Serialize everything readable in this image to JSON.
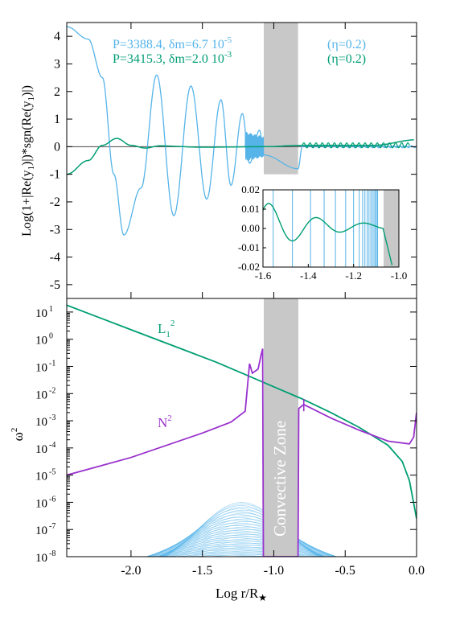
{
  "chart_data": [
    {
      "type": "line",
      "panel": "top",
      "ylabel": "Log(1+|Re(y1)|)*sgn(Re(y1))",
      "ylabel_parts": [
        "Log(1+|Re(y",
        "1",
        ")|)*sgn(Re(y",
        "1",
        ")|)"
      ],
      "xlim": [
        -2.45,
        0.0
      ],
      "ylim": [
        -5.5,
        4.5
      ],
      "yticks": [
        "4",
        "3",
        "2",
        "1",
        "0",
        "-1",
        "-2",
        "-3",
        "-4",
        "-5"
      ],
      "yticks_values": [
        4,
        3,
        2,
        1,
        0,
        -1,
        -2,
        -3,
        -4,
        -5
      ],
      "convective_zone": [
        -1.07,
        -0.83
      ],
      "legend": [
        {
          "text_main": "P=3388.4, δm=6.7 10",
          "text_sup": "-5",
          "eta": "(η=0.2)",
          "color": "#56b4e9"
        },
        {
          "text_main": "P=3415.3, δm=2.0 10",
          "text_sup": "-3",
          "eta": "(η=0.2)",
          "color": "#009e73"
        }
      ],
      "series": [
        {
          "name": "P=3388.4",
          "color": "#56b4e9",
          "description_points": [
            [
              -2.45,
              4.35
            ],
            [
              -2.3,
              3.9
            ],
            [
              -2.2,
              2.5
            ],
            [
              -2.12,
              -1.0
            ],
            [
              -2.05,
              -3.2
            ],
            [
              -1.93,
              -1.5
            ],
            [
              -1.82,
              2.6
            ],
            [
              -1.7,
              -2.5
            ],
            [
              -1.58,
              2.2
            ],
            [
              -1.47,
              -1.9
            ],
            [
              -1.37,
              1.7
            ],
            [
              -1.3,
              -1.4
            ],
            [
              -1.22,
              1.2
            ],
            [
              -1.17,
              -0.6
            ],
            [
              -1.1,
              0.6
            ],
            [
              -1.07,
              -0.3
            ],
            [
              -0.83,
              -0.8
            ],
            [
              -0.8,
              0.02
            ],
            [
              0.0,
              0.0
            ]
          ]
        },
        {
          "name": "P=3415.3",
          "color": "#009e73",
          "description_points": [
            [
              -2.45,
              -1.0
            ],
            [
              -2.3,
              -0.5
            ],
            [
              -2.2,
              0.05
            ],
            [
              -2.1,
              0.3
            ],
            [
              -2.0,
              0.05
            ],
            [
              -1.9,
              -0.05
            ],
            [
              -1.8,
              0.03
            ],
            [
              -1.5,
              -0.02
            ],
            [
              -1.07,
              0.0
            ],
            [
              -0.8,
              0.05
            ],
            [
              -0.3,
              0.05
            ],
            [
              0.0,
              0.25
            ]
          ]
        }
      ]
    },
    {
      "type": "line",
      "panel": "inset",
      "xlim": [
        -1.6,
        -1.0
      ],
      "ylim": [
        -0.02,
        0.02
      ],
      "xticks": [
        "-1.6",
        "-1.4",
        "-1.2",
        "-1.0"
      ],
      "xticks_values": [
        -1.6,
        -1.4,
        -1.2,
        -1.0
      ],
      "yticks": [
        "0.02",
        "0.01",
        "0.00",
        "-0.01",
        "-0.02"
      ],
      "yticks_values": [
        0.02,
        0.01,
        0.0,
        -0.01,
        -0.02
      ],
      "convective_zone": [
        -1.07,
        -1.0
      ]
    },
    {
      "type": "line",
      "panel": "bottom",
      "xlabel": "Log r/R",
      "xlabel_star": "★",
      "ylabel": "ω",
      "ylabel_sup": "2",
      "xlim": [
        -2.45,
        0.0
      ],
      "ylim_log10": [
        -8,
        1.5
      ],
      "log_scale_y": true,
      "xticks": [
        "-2.0",
        "-1.5",
        "-1.0",
        "-0.5",
        "0.0"
      ],
      "xticks_values": [
        -2.0,
        -1.5,
        -1.0,
        -0.5,
        0.0
      ],
      "yticks_base": "10",
      "yticks_exp": [
        "1",
        "0",
        "-1",
        "-2",
        "-3",
        "-4",
        "-5",
        "-6",
        "-7",
        "-8"
      ],
      "convective_zone": [
        -1.07,
        -0.83
      ],
      "zone_label": "Convective Zone",
      "series": [
        {
          "name": "L1^2",
          "label_main": "L",
          "label_sub": "1",
          "label_sup": "2",
          "color": "#009e73",
          "log10_points": [
            [
              -2.45,
              1.25
            ],
            [
              -2.2,
              0.75
            ],
            [
              -2.0,
              0.35
            ],
            [
              -1.8,
              -0.05
            ],
            [
              -1.6,
              -0.45
            ],
            [
              -1.4,
              -0.85
            ],
            [
              -1.2,
              -1.3
            ],
            [
              -1.0,
              -1.75
            ],
            [
              -0.8,
              -2.2
            ],
            [
              -0.6,
              -2.7
            ],
            [
              -0.4,
              -3.25
            ],
            [
              -0.2,
              -3.9
            ],
            [
              -0.1,
              -4.5
            ],
            [
              -0.05,
              -5.2
            ],
            [
              0.0,
              -6.6
            ]
          ]
        },
        {
          "name": "N^2",
          "label_main": "N",
          "label_sup": "2",
          "color": "#9932cc",
          "log10_points": [
            [
              -2.45,
              -5.0
            ],
            [
              -2.0,
              -4.35
            ],
            [
              -1.5,
              -3.45
            ],
            [
              -1.3,
              -3.05
            ],
            [
              -1.2,
              -2.65
            ],
            [
              -1.17,
              -0.9
            ],
            [
              -1.15,
              -1.25
            ],
            [
              -1.11,
              -1.1
            ],
            [
              -1.09,
              -0.6
            ],
            [
              -1.078,
              -0.35
            ],
            [
              -1.073,
              -8.0
            ],
            [
              -0.83,
              -8.0
            ],
            [
              -0.825,
              -2.55
            ],
            [
              -0.79,
              -2.4
            ],
            [
              -0.6,
              -2.9
            ],
            [
              -0.4,
              -3.35
            ],
            [
              -0.2,
              -3.75
            ],
            [
              -0.05,
              -3.85
            ],
            [
              -0.02,
              -3.6
            ],
            [
              -0.005,
              -2.9
            ],
            [
              0.0,
              -2.7
            ]
          ]
        }
      ]
    }
  ],
  "colors": {
    "blue": "#56b4e9",
    "green": "#009e73",
    "purple": "#9932cc",
    "zone": "#c8c8c8"
  }
}
